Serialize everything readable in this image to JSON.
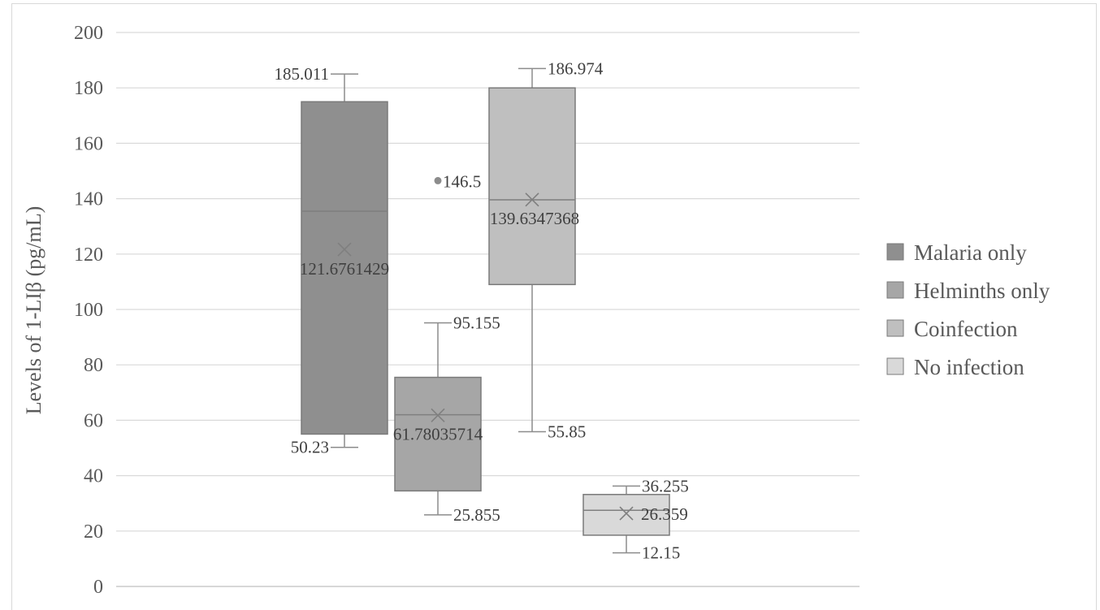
{
  "chart_data": {
    "type": "box",
    "title": "",
    "xlabel": "",
    "ylabel": "Levels of 1-LIβ (pg/mL)",
    "ylim": [
      0,
      200
    ],
    "yticks": [
      0,
      20,
      40,
      60,
      80,
      100,
      120,
      140,
      160,
      180,
      200
    ],
    "grid": "horizontal",
    "legend_position": "right",
    "series": [
      {
        "name": "Malaria only",
        "color": "#8f8f8f",
        "min": 50.23,
        "q1": 55,
        "median": 135.5,
        "q3": 175,
        "max": 185.011,
        "mean": 121.6761429,
        "outliers": [],
        "labels": {
          "max": "185.011",
          "min": "50.23",
          "mean": "121.6761429"
        }
      },
      {
        "name": "Helminths only",
        "color": "#a6a6a6",
        "min": 25.855,
        "q1": 34.5,
        "median": 62,
        "q3": 75.5,
        "max": 95.155,
        "mean": 61.78035714,
        "outliers": [
          146.5
        ],
        "labels": {
          "max": "95.155",
          "min": "25.855",
          "mean": "61.78035714",
          "outlier": "146.5"
        }
      },
      {
        "name": "Coinfection",
        "color": "#bfbfbf",
        "min": 55.85,
        "q1": 109,
        "median": 139.6,
        "q3": 180,
        "max": 186.974,
        "mean": 139.6347368,
        "outliers": [],
        "labels": {
          "max": "186.974",
          "min": "55.85",
          "mean": "139.6347368"
        }
      },
      {
        "name": "No infection",
        "color": "#d9d9d9",
        "min": 12.15,
        "q1": 18.5,
        "median": 27.5,
        "q3": 33.2,
        "max": 36.255,
        "mean": 26.359,
        "outliers": [],
        "labels": {
          "max": "36.255",
          "min": "12.15",
          "mean": "26.359"
        }
      }
    ]
  }
}
